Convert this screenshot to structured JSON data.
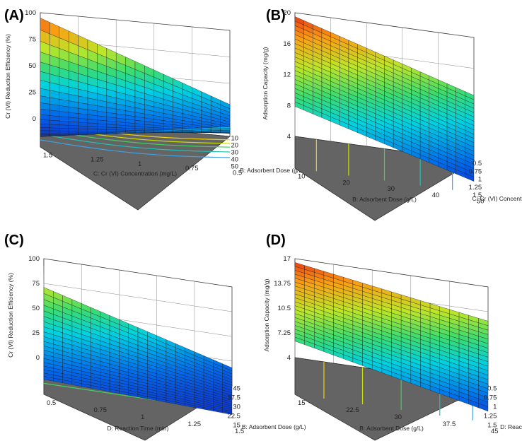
{
  "colors": {
    "floor": "#646464",
    "wall_line": "#3a3a3a",
    "mesh_line": "#1a1a1a"
  },
  "chart_data": [
    {
      "type": "surface3d",
      "panel_label": "(A)",
      "zlabel": "Cr (VI) Reduction Efficiency (%)",
      "zticks": [
        "100",
        "75",
        "50",
        "25",
        "0"
      ],
      "zlim": [
        0,
        100
      ],
      "left_axis_label": "C: Cr (VI) Concentration (mg/L)",
      "left_ticks": [
        "10",
        "20",
        "30",
        "40",
        "50"
      ],
      "right_axis_label": "B: Adsorbent Dose (g/L)",
      "right_ticks": [
        "1.5",
        "1.25",
        "1",
        "0.75",
        "0.5"
      ],
      "surface_corners": {
        "back": 95,
        "left": 10,
        "right": 30,
        "front": 36
      },
      "surface_curvature": -30,
      "contours": [
        0.12,
        0.25,
        0.38,
        0.55,
        0.75
      ]
    },
    {
      "type": "surface3d",
      "panel_label": "(B)",
      "zlabel": "Adsorption Capacity (mg/g)",
      "zticks": [
        "20",
        "16",
        "12",
        "8",
        "4"
      ],
      "zlim": [
        4,
        20
      ],
      "left_axis_label": "B: Adsorbent Dose (g/L)",
      "left_ticks": [
        "0.5",
        "0.75",
        "1",
        "1.25",
        "1.5"
      ],
      "right_axis_label": "C: Cr (VI) Concentration (mg/L)",
      "right_ticks": [
        "10",
        "20",
        "30",
        "40",
        "50"
      ],
      "surface_corners": {
        "back": 19.5,
        "left": 12,
        "right": 12.5,
        "front": 5.5
      },
      "surface_curvature": 0,
      "contours": [
        0.12,
        0.3,
        0.5,
        0.7,
        0.88
      ]
    },
    {
      "type": "surface3d",
      "panel_label": "(C)",
      "zlabel": "Cr (VI) Reduction Efficiency (%)",
      "zticks": [
        "100",
        "75",
        "50",
        "25",
        "0"
      ],
      "zlim": [
        0,
        100
      ],
      "left_axis_label": "D: Reaction Time (min)",
      "left_ticks": [
        "45",
        "37.5",
        "30",
        "22.5",
        "15"
      ],
      "right_axis_label": "B: Adsorbent Dose (g/L)",
      "right_ticks": [
        "0.5",
        "0.75",
        "1",
        "1.25",
        "1.5"
      ],
      "surface_corners": {
        "back": 70,
        "left": 15,
        "right": 18,
        "front": 8
      },
      "surface_curvature": -8,
      "contours": [
        0.2,
        0.45,
        0.7
      ]
    },
    {
      "type": "surface3d",
      "panel_label": "(D)",
      "zlabel": "Adsorption Capacity (mg/g)",
      "zticks": [
        "17",
        "13.75",
        "10.5",
        "7.25",
        "4"
      ],
      "zlim": [
        4,
        17
      ],
      "left_axis_label": "B: Adsorbent Dose (g/L)",
      "left_ticks": [
        "0.5",
        "0.75",
        "1",
        "1.25",
        "1.5"
      ],
      "right_axis_label": "D: Reaction Time (min)",
      "right_ticks": [
        "15",
        "22.5",
        "30",
        "37.5",
        "45"
      ],
      "surface_corners": {
        "back": 16.5,
        "left": 11,
        "right": 12.5,
        "front": 5.5
      },
      "surface_curvature": 0,
      "contours": [
        0.15,
        0.35,
        0.55,
        0.75,
        0.92
      ]
    }
  ]
}
